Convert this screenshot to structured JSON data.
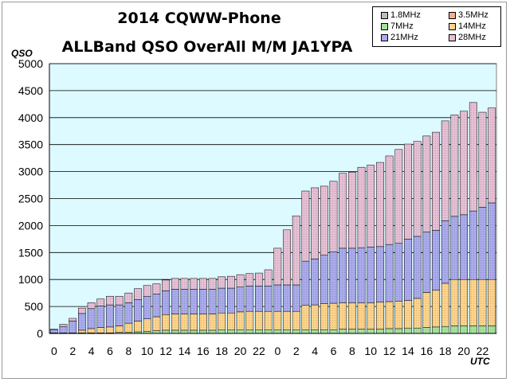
{
  "chart_data": {
    "type": "bar",
    "stacked": true,
    "title_line1": "2014 CQWW-Phone",
    "title_line2": "ALLBand QSO OverAll M/M JA1YPA",
    "ylabel": "QSO",
    "xlabel": "UTC",
    "ylim": [
      0,
      5000
    ],
    "yticks": [
      0,
      500,
      1000,
      1500,
      2000,
      2500,
      3000,
      3500,
      4000,
      4500,
      5000
    ],
    "xtick_labels": [
      "0",
      "2",
      "4",
      "6",
      "8",
      "10",
      "12",
      "14",
      "16",
      "18",
      "20",
      "22",
      "0",
      "2",
      "4",
      "6",
      "8",
      "10",
      "12",
      "14",
      "16",
      "18",
      "20",
      "22"
    ],
    "categories": [
      "0",
      "1",
      "2",
      "3",
      "4",
      "5",
      "6",
      "7",
      "8",
      "9",
      "10",
      "11",
      "12",
      "13",
      "14",
      "15",
      "16",
      "17",
      "18",
      "19",
      "20",
      "21",
      "22",
      "23",
      "0",
      "1",
      "2",
      "3",
      "4",
      "5",
      "6",
      "7",
      "8",
      "9",
      "10",
      "11",
      "12",
      "13",
      "14",
      "15",
      "16",
      "17",
      "18",
      "19",
      "20",
      "21",
      "22",
      "23"
    ],
    "grid": true,
    "legend_position": "top-right",
    "background_color": "#dcfaff",
    "series": [
      {
        "name": "1.8MHz",
        "color": "#bdbdbd",
        "values": [
          0,
          0,
          0,
          0,
          0,
          0,
          0,
          0,
          0,
          0,
          0,
          0,
          0,
          0,
          0,
          0,
          0,
          0,
          0,
          0,
          0,
          0,
          0,
          0,
          0,
          0,
          0,
          0,
          0,
          0,
          0,
          0,
          0,
          0,
          0,
          0,
          0,
          0,
          0,
          0,
          0,
          0,
          0,
          0,
          0,
          0,
          0,
          0
        ]
      },
      {
        "name": "3.5MHz",
        "color": "#f0b090",
        "values": [
          0,
          0,
          0,
          0,
          0,
          0,
          0,
          0,
          0,
          0,
          0,
          0,
          0,
          0,
          0,
          0,
          0,
          0,
          0,
          0,
          0,
          0,
          0,
          0,
          0,
          0,
          0,
          0,
          0,
          0,
          0,
          0,
          0,
          0,
          0,
          0,
          0,
          0,
          0,
          0,
          0,
          0,
          0,
          0,
          0,
          0,
          0,
          0
        ]
      },
      {
        "name": "7MHz",
        "color": "#a6e39a",
        "values": [
          10,
          10,
          10,
          10,
          10,
          10,
          10,
          20,
          20,
          30,
          40,
          50,
          60,
          60,
          60,
          60,
          60,
          60,
          70,
          70,
          70,
          70,
          70,
          70,
          70,
          70,
          70,
          70,
          70,
          70,
          70,
          80,
          80,
          80,
          80,
          80,
          90,
          90,
          100,
          100,
          110,
          120,
          130,
          140,
          140,
          140,
          140,
          140
        ]
      },
      {
        "name": "14MHz",
        "color": "#ffd38a",
        "values": [
          0,
          0,
          0,
          50,
          80,
          100,
          110,
          120,
          170,
          200,
          230,
          260,
          290,
          300,
          300,
          300,
          300,
          300,
          310,
          310,
          330,
          340,
          340,
          340,
          340,
          340,
          340,
          450,
          460,
          480,
          490,
          490,
          490,
          490,
          490,
          500,
          500,
          510,
          510,
          550,
          650,
          680,
          800,
          860,
          860,
          860,
          860,
          860
        ]
      },
      {
        "name": "21MHz",
        "color": "#aaaaee",
        "values": [
          60,
          120,
          220,
          310,
          370,
          400,
          410,
          390,
          380,
          400,
          420,
          420,
          440,
          460,
          460,
          460,
          460,
          460,
          460,
          460,
          460,
          470,
          470,
          470,
          490,
          490,
          490,
          820,
          850,
          900,
          950,
          1010,
          1010,
          1020,
          1030,
          1030,
          1060,
          1070,
          1140,
          1150,
          1120,
          1110,
          1160,
          1170,
          1200,
          1270,
          1340,
          1420
        ]
      },
      {
        "name": "28MHz",
        "color": "#e6bfd5",
        "values": [
          10,
          40,
          50,
          100,
          110,
          130,
          160,
          160,
          180,
          200,
          200,
          190,
          200,
          200,
          200,
          200,
          200,
          200,
          210,
          220,
          230,
          230,
          240,
          300,
          680,
          1020,
          1280,
          1300,
          1320,
          1280,
          1310,
          1390,
          1410,
          1490,
          1520,
          1560,
          1640,
          1740,
          1760,
          1760,
          1780,
          1820,
          1850,
          1880,
          1920,
          2010,
          1760,
          1760
        ]
      }
    ]
  }
}
